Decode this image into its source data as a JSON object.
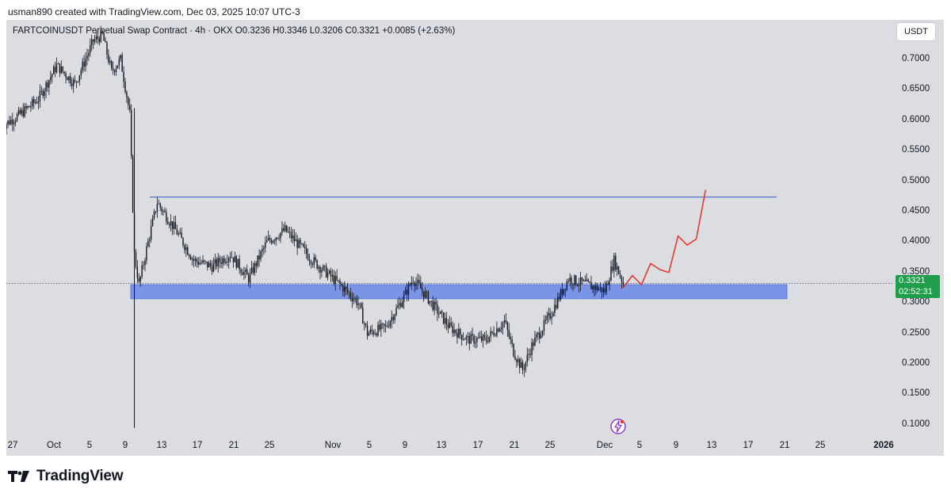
{
  "credit": "usman890 created with TradingView.com, Dec 03, 2025 10:07 UTC-3",
  "header": {
    "symbol_line": "FARTCOINUSDT Perpetual Swap Contract · 4h · OKX  O0.3236  H0.3346  L0.3206  C0.3321  +0.0085 (+2.63%)",
    "currency": "USDT"
  },
  "price_badge": {
    "price": "0.3321",
    "countdown": "02:52:31",
    "color": "#1e9e4a"
  },
  "logo_text": "TradingView",
  "colors": {
    "candle": "#131722",
    "zone": "#7a94e8",
    "resistance_line": "#5b79d6",
    "projection": "#e53935",
    "background": "#dcdde1"
  },
  "chart_data": {
    "type": "candlestick",
    "title": "FARTCOINUSDT Perpetual Swap Contract",
    "timeframe": "4h",
    "exchange": "OKX",
    "ohlc_last": {
      "open": 0.3236,
      "high": 0.3346,
      "low": 0.3206,
      "close": 0.3321,
      "change": 0.0085,
      "change_pct": 2.63
    },
    "ylim": [
      0.08,
      0.76
    ],
    "y_ticks": [
      "0.7000",
      "0.6500",
      "0.6000",
      "0.5500",
      "0.5000",
      "0.4500",
      "0.4000",
      "0.3500",
      "0.3000",
      "0.2500",
      "0.2000",
      "0.1500",
      "0.1000"
    ],
    "x_ticks": [
      "27",
      "Oct",
      "5",
      "9",
      "13",
      "17",
      "21",
      "25",
      "Nov",
      "5",
      "9",
      "13",
      "17",
      "21",
      "25",
      "Dec",
      "5",
      "9",
      "13",
      "17",
      "21",
      "25",
      "2026"
    ],
    "price_path_approx": [
      [
        "2025-09-26",
        0.59
      ],
      [
        "2025-09-28",
        0.61
      ],
      [
        "2025-09-30",
        0.635
      ],
      [
        "2025-10-02",
        0.69
      ],
      [
        "2025-10-04",
        0.66
      ],
      [
        "2025-10-06",
        0.73
      ],
      [
        "2025-10-07",
        0.74
      ],
      [
        "2025-10-08",
        0.68
      ],
      [
        "2025-10-09",
        0.7
      ],
      [
        "2025-10-10",
        0.61
      ],
      [
        "2025-10-10T12",
        0.38
      ],
      [
        "2025-10-11",
        0.33
      ],
      [
        "2025-10-12",
        0.4
      ],
      [
        "2025-10-13",
        0.465
      ],
      [
        "2025-10-15",
        0.42
      ],
      [
        "2025-10-17",
        0.37
      ],
      [
        "2025-10-19",
        0.36
      ],
      [
        "2025-10-21",
        0.38
      ],
      [
        "2025-10-23",
        0.34
      ],
      [
        "2025-10-25",
        0.4
      ],
      [
        "2025-10-27",
        0.42
      ],
      [
        "2025-10-30",
        0.37
      ],
      [
        "2025-11-02",
        0.33
      ],
      [
        "2025-11-04",
        0.3
      ],
      [
        "2025-11-05",
        0.25
      ],
      [
        "2025-11-07",
        0.26
      ],
      [
        "2025-11-09",
        0.31
      ],
      [
        "2025-11-10",
        0.34
      ],
      [
        "2025-11-12",
        0.3
      ],
      [
        "2025-11-14",
        0.26
      ],
      [
        "2025-11-16",
        0.24
      ],
      [
        "2025-11-18",
        0.24
      ],
      [
        "2025-11-20",
        0.27
      ],
      [
        "2025-11-21",
        0.22
      ],
      [
        "2025-11-22",
        0.19
      ],
      [
        "2025-11-23",
        0.23
      ],
      [
        "2025-11-25",
        0.28
      ],
      [
        "2025-11-27",
        0.34
      ],
      [
        "2025-11-29",
        0.33
      ],
      [
        "2025-12-01",
        0.32
      ],
      [
        "2025-12-02",
        0.37
      ],
      [
        "2025-12-03",
        0.3321
      ]
    ],
    "annotations": [
      {
        "type": "horizontal_line",
        "price": 0.474
      },
      {
        "type": "support_zone",
        "from": 0.307,
        "to": 0.33
      },
      {
        "type": "projection_path",
        "points": [
          [
            "2025-12-03",
            0.325
          ],
          [
            "2025-12-04",
            0.345
          ],
          [
            "2025-12-05",
            0.33
          ],
          [
            "2025-12-06",
            0.365
          ],
          [
            "2025-12-07",
            0.355
          ],
          [
            "2025-12-08",
            0.35
          ],
          [
            "2025-12-09",
            0.41
          ],
          [
            "2025-12-10",
            0.395
          ],
          [
            "2025-12-11",
            0.405
          ],
          [
            "2025-12-12",
            0.485
          ]
        ]
      }
    ],
    "last_price": 0.3321,
    "bar_countdown": "02:52:31"
  }
}
